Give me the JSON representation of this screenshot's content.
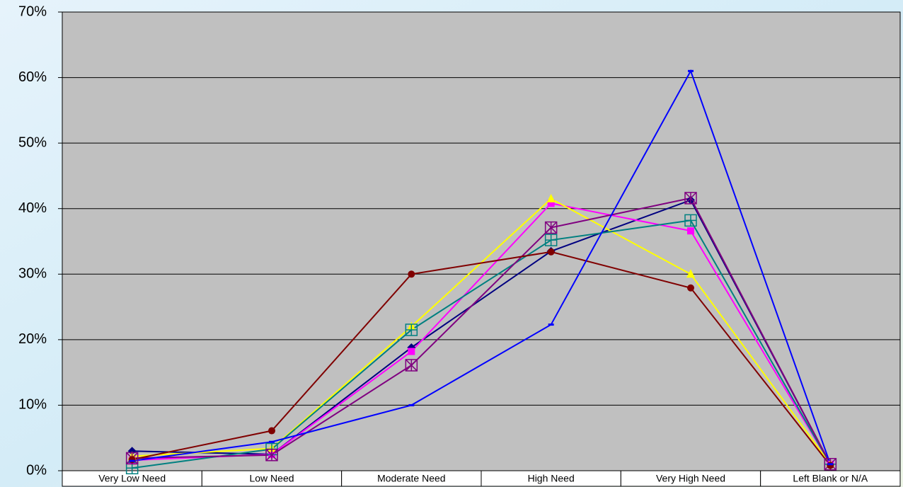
{
  "chart_data": {
    "type": "line",
    "categories": [
      "Very Low Need",
      "Low Need",
      "Moderate Need",
      "High Need",
      "Very High Need",
      "Left Blank or N/A"
    ],
    "ylim": [
      0,
      70
    ],
    "yticks": [
      {
        "value": 0,
        "label": "0%"
      },
      {
        "value": 10,
        "label": "10%"
      },
      {
        "value": 20,
        "label": "20%"
      },
      {
        "value": 30,
        "label": "30%"
      },
      {
        "value": 40,
        "label": "40%"
      },
      {
        "value": 50,
        "label": "50%"
      },
      {
        "value": 60,
        "label": "60%"
      },
      {
        "value": 70,
        "label": "70%"
      }
    ],
    "grid": true,
    "series": [
      {
        "color": "#000080",
        "marker": "diamond",
        "values": [
          3.0,
          2.5,
          18.8,
          33.5,
          41.3,
          1.0
        ]
      },
      {
        "color": "#ff00ff",
        "marker": "square",
        "values": [
          1.6,
          2.5,
          18.2,
          40.8,
          36.6,
          1.0
        ]
      },
      {
        "color": "#ffff00",
        "marker": "triangle",
        "values": [
          2.2,
          3.4,
          22.0,
          41.5,
          30.0,
          1.0
        ]
      },
      {
        "color": "#008080",
        "marker": "square-plus",
        "values": [
          0.4,
          3.3,
          21.5,
          35.2,
          38.2,
          1.0
        ]
      },
      {
        "color": "#800080",
        "marker": "square-x",
        "values": [
          1.9,
          2.4,
          16.1,
          37.1,
          41.6,
          1.0
        ]
      },
      {
        "color": "#800000",
        "marker": "circle",
        "values": [
          1.7,
          6.1,
          30.0,
          33.4,
          27.9,
          0.8
        ]
      },
      {
        "color": "#0000ff",
        "marker": "dash",
        "values": [
          1.5,
          4.4,
          10.0,
          22.3,
          61.0,
          1.0
        ]
      }
    ]
  }
}
